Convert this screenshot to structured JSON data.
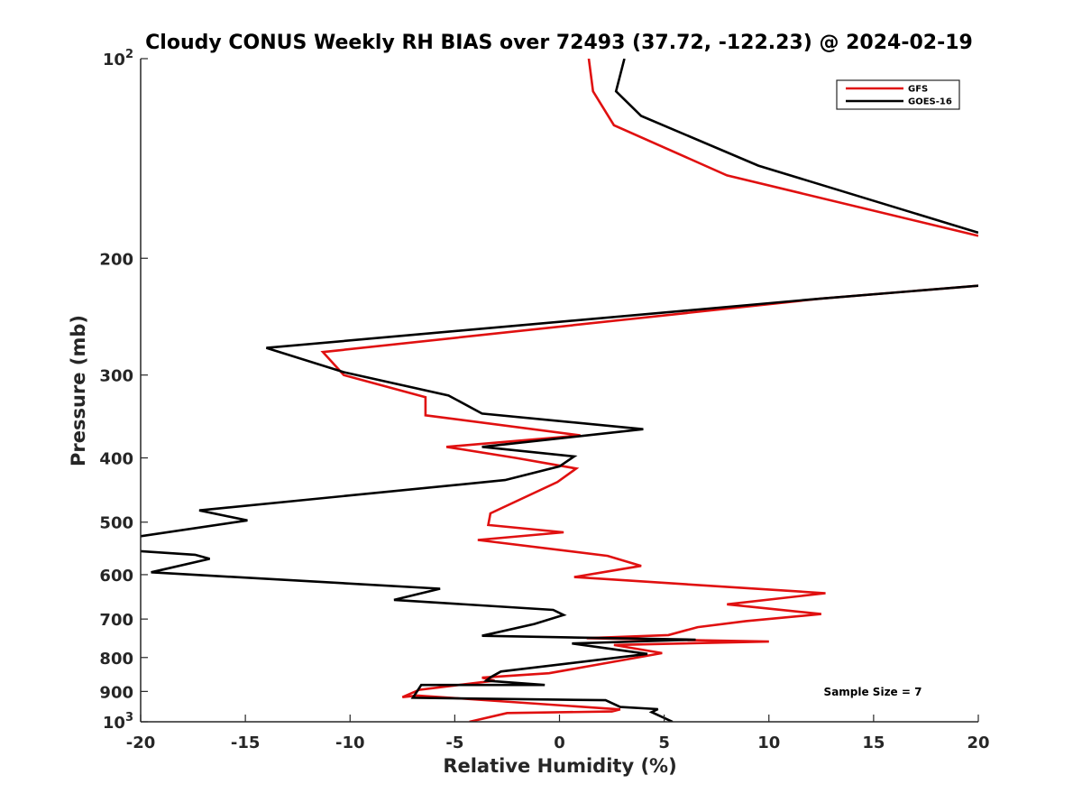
{
  "colors": {
    "gfs": "#e01010",
    "goes": "#000000",
    "axis": "#262626"
  },
  "chart_data": {
    "type": "line",
    "title": "Cloudy CONUS Weekly RH BIAS over 72493 (37.72, -122.23) @ 2024-02-19",
    "xlabel": "Relative Humidity (%)",
    "ylabel": "Pressure (mb)",
    "xlim": [
      -20,
      20
    ],
    "ylim": [
      1000,
      100
    ],
    "yscale": "log",
    "y_reversed": true,
    "grid": false,
    "legend_position": "top-right",
    "x_ticks": [
      "-20",
      "-15",
      "-10",
      "-5",
      "0",
      "5",
      "10",
      "15",
      "20"
    ],
    "y_ticks": [
      {
        "value": 100,
        "base": "10",
        "exp": "2"
      },
      {
        "value": 200,
        "label": "200"
      },
      {
        "value": 300,
        "label": "300"
      },
      {
        "value": 400,
        "label": "400"
      },
      {
        "value": 500,
        "label": "500"
      },
      {
        "value": 600,
        "label": "600"
      },
      {
        "value": 700,
        "label": "700"
      },
      {
        "value": 800,
        "label": "800"
      },
      {
        "value": 900,
        "label": "900"
      },
      {
        "value": 1000,
        "base": "10",
        "exp": "3"
      }
    ],
    "annotation": "Sample Size = 7",
    "series": [
      {
        "name": "GFS",
        "color": "#e01010",
        "x": [
          1.4,
          1.6,
          2.6,
          8.0,
          20.0,
          null,
          20.0,
          12.5,
          -11.3,
          -10.3,
          -6.4,
          -6.4,
          1.0,
          -5.4,
          -2.1,
          0.8,
          -0.1,
          -3.3,
          -3.4,
          0.2,
          -3.9,
          2.3,
          3.9,
          0.7,
          12.7,
          8.0,
          12.5,
          8.9,
          6.6,
          5.2,
          1.3,
          10.0,
          2.6,
          4.9,
          -0.5,
          -3.7,
          -3.1,
          -6.7,
          -7.5,
          -6.8,
          2.9,
          2.5,
          -2.5,
          -4.3
        ],
        "y": [
          100,
          112,
          126,
          150,
          185,
          null,
          220,
          230,
          277,
          300,
          324,
          345,
          370,
          385,
          400,
          415,
          435,
          485,
          505,
          518,
          532,
          562,
          582,
          605,
          640,
          665,
          688,
          705,
          720,
          740,
          748,
          757,
          766,
          788,
          845,
          858,
          867,
          895,
          918,
          913,
          958,
          965,
          970,
          1000
        ]
      },
      {
        "name": "GOES-16",
        "color": "#000000",
        "x": [
          3.1,
          2.7,
          3.9,
          9.5,
          20.0,
          null,
          20.0,
          12.5,
          -14.0,
          -10.3,
          -5.3,
          -3.7,
          4.0,
          -3.7,
          0.7,
          0.0,
          -2.6,
          -17.2,
          -14.9,
          -20.0,
          null,
          -20.0,
          -17.4,
          -16.7,
          -19.5,
          -5.7,
          -7.9,
          -0.3,
          0.2,
          -1.2,
          -3.7,
          6.5,
          0.6,
          4.2,
          -2.8,
          -3.3,
          -3.5,
          -0.7,
          -6.6,
          -7.0,
          2.2,
          2.9,
          4.7,
          4.4,
          5.4
        ],
        "y": [
          100,
          112,
          122,
          145,
          183,
          null,
          220,
          230,
          273,
          297,
          322,
          343,
          362,
          385,
          398,
          412,
          432,
          480,
          497,
          525,
          null,
          553,
          560,
          568,
          595,
          630,
          655,
          678,
          690,
          712,
          742,
          752,
          762,
          790,
          840,
          857,
          867,
          880,
          880,
          920,
          928,
          950,
          957,
          967,
          1000
        ]
      }
    ]
  }
}
